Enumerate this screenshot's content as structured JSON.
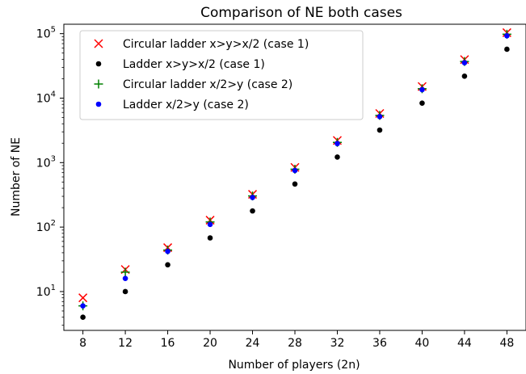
{
  "chart_data": {
    "type": "scatter",
    "title": "Comparison of NE both cases",
    "xlabel": "Number of players (2n)",
    "ylabel": "Number of NE",
    "yscale": "log",
    "xlim": [
      6.2,
      49.8
    ],
    "ylim": [
      2.5,
      140000
    ],
    "x_ticks": [
      8,
      12,
      16,
      20,
      24,
      28,
      32,
      36,
      40,
      44,
      48
    ],
    "y_ticks": [
      {
        "value": 10,
        "base": "10",
        "exp": "1"
      },
      {
        "value": 100,
        "base": "10",
        "exp": "2"
      },
      {
        "value": 1000,
        "base": "10",
        "exp": "3"
      },
      {
        "value": 10000,
        "base": "10",
        "exp": "4"
      },
      {
        "value": 100000,
        "base": "10",
        "exp": "5"
      }
    ],
    "legend_position": "top-left",
    "grid": false,
    "x": [
      8,
      12,
      16,
      20,
      24,
      28,
      32,
      36,
      40,
      44,
      48
    ],
    "series": [
      {
        "name": "Circular ladder x>y>x/2 (case 1)",
        "marker": "x",
        "color": "#ff0000",
        "values": [
          8,
          22,
          48,
          128,
          322,
          842,
          2206,
          5778,
          15126,
          39602,
          103682
        ]
      },
      {
        "name": "Ladder x>y>x/2 (case 1)",
        "marker": "dot",
        "color": "#000000",
        "values": [
          4,
          10,
          26,
          68,
          178,
          466,
          1220,
          3194,
          8362,
          21892,
          57314
        ]
      },
      {
        "name": "Circular ladder x/2>y (case 2)",
        "marker": "plus",
        "color": "#008000",
        "values": [
          6,
          20,
          44,
          120,
          304,
          790,
          2060,
          5400,
          14000,
          37000,
          98000
        ]
      },
      {
        "name": "Ladder x/2>y (case 2)",
        "marker": "dot",
        "color": "#0000ff",
        "values": [
          6,
          16,
          42,
          110,
          288,
          754,
          1974,
          5168,
          13530,
          35422,
          92736
        ]
      }
    ]
  }
}
